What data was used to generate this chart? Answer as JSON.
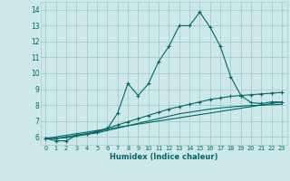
{
  "xlabel": "Humidex (Indice chaleur)",
  "ylabel": "",
  "xlim": [
    -0.5,
    23.5
  ],
  "ylim": [
    5.5,
    14.5
  ],
  "xticks": [
    0,
    1,
    2,
    3,
    4,
    5,
    6,
    7,
    8,
    9,
    10,
    11,
    12,
    13,
    14,
    15,
    16,
    17,
    18,
    19,
    20,
    21,
    22,
    23
  ],
  "yticks": [
    6,
    7,
    8,
    9,
    10,
    11,
    12,
    13,
    14
  ],
  "background_color": "#cce8e8",
  "grid_color": "#aacece",
  "line_color": "#006868",
  "line1_x": [
    0,
    1,
    2,
    3,
    4,
    5,
    6,
    7,
    8,
    9,
    10,
    11,
    12,
    13,
    14,
    15,
    16,
    17,
    18,
    19,
    20,
    21,
    22,
    23
  ],
  "line1_y": [
    5.9,
    5.75,
    5.75,
    6.1,
    6.2,
    6.3,
    6.5,
    7.5,
    9.35,
    8.6,
    9.35,
    10.75,
    11.7,
    13.0,
    13.0,
    13.85,
    12.9,
    11.7,
    9.8,
    8.6,
    8.15,
    8.1,
    8.2,
    8.2
  ],
  "line2_x": [
    0,
    1,
    2,
    3,
    4,
    5,
    6,
    7,
    8,
    9,
    10,
    11,
    12,
    13,
    14,
    15,
    16,
    17,
    18,
    19,
    20,
    21,
    22,
    23
  ],
  "line2_y": [
    5.9,
    5.9,
    6.0,
    6.1,
    6.2,
    6.35,
    6.55,
    6.75,
    6.95,
    7.15,
    7.35,
    7.55,
    7.75,
    7.9,
    8.05,
    8.2,
    8.35,
    8.45,
    8.55,
    8.6,
    8.65,
    8.7,
    8.75,
    8.8
  ],
  "line3_x": [
    0,
    1,
    2,
    3,
    4,
    5,
    6,
    7,
    8,
    9,
    10,
    11,
    12,
    13,
    14,
    15,
    16,
    17,
    18,
    19,
    20,
    21,
    22,
    23
  ],
  "line3_y": [
    5.9,
    5.9,
    5.95,
    6.05,
    6.15,
    6.25,
    6.4,
    6.55,
    6.7,
    6.85,
    7.0,
    7.15,
    7.3,
    7.45,
    7.55,
    7.65,
    7.75,
    7.82,
    7.88,
    7.93,
    7.97,
    8.0,
    8.02,
    8.05
  ],
  "line4_x": [
    0,
    23
  ],
  "line4_y": [
    5.9,
    8.2
  ]
}
